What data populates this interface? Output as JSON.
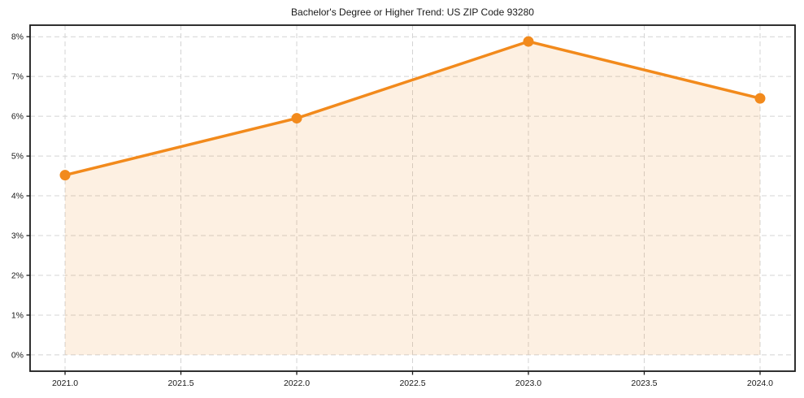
{
  "chart_data": {
    "type": "area",
    "title": "Bachelor's Degree or Higher Trend: US ZIP Code 93280",
    "x": [
      2021.0,
      2022.0,
      2023.0,
      2024.0
    ],
    "values": [
      4.52,
      5.95,
      7.88,
      6.45
    ],
    "fill_baseline": 0,
    "xlim": [
      2020.849,
      2024.151
    ],
    "ylim": [
      -0.41,
      8.29
    ],
    "x_ticks": [
      2021.0,
      2021.5,
      2022.0,
      2022.5,
      2023.0,
      2023.5,
      2024.0
    ],
    "x_tick_labels": [
      "2021.0",
      "2021.5",
      "2022.0",
      "2022.5",
      "2023.0",
      "2023.5",
      "2024.0"
    ],
    "y_ticks": [
      0,
      1,
      2,
      3,
      4,
      5,
      6,
      7,
      8
    ],
    "y_tick_labels": [
      "0%",
      "1%",
      "2%",
      "3%",
      "4%",
      "5%",
      "6%",
      "7%",
      "8%"
    ],
    "grid": true,
    "grid_style": "dashed",
    "legend": "none",
    "colors": {
      "line": "#f28a1c",
      "marker": "#f28a1c",
      "fill": "#f28a1c",
      "fill_opacity": 0.13,
      "grid": "#d4d4d4",
      "axis": "#1a1a1a",
      "text": "#1a1a1a",
      "background": "#ffffff"
    }
  }
}
